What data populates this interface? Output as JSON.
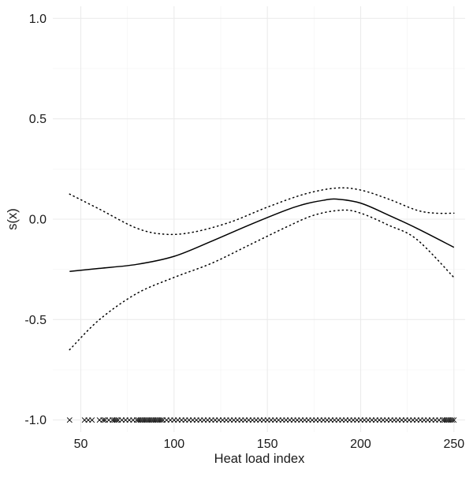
{
  "chart_data": {
    "type": "line",
    "xlabel": "Heat load index",
    "ylabel": "s(x)",
    "xlim": [
      35,
      256
    ],
    "ylim": [
      -1.06,
      1.06
    ],
    "x_ticks": [
      {
        "value": 50,
        "label": "50"
      },
      {
        "value": 100,
        "label": "100"
      },
      {
        "value": 150,
        "label": "150"
      },
      {
        "value": 200,
        "label": "200"
      },
      {
        "value": 250,
        "label": "250"
      }
    ],
    "y_ticks": [
      {
        "value": 1.0,
        "label": "1.0"
      },
      {
        "value": 0.5,
        "label": "0.5"
      },
      {
        "value": 0.0,
        "label": "0.0"
      },
      {
        "value": -0.5,
        "label": "-0.5"
      },
      {
        "value": -1.0,
        "label": "-1.0"
      }
    ],
    "grid": true,
    "series": [
      {
        "role": "fit",
        "style": "solid",
        "x": [
          44,
          60,
          80,
          100,
          120,
          140,
          160,
          170,
          180,
          187,
          200,
          215,
          230,
          250
        ],
        "y": [
          -0.26,
          -0.245,
          -0.225,
          -0.185,
          -0.11,
          -0.03,
          0.045,
          0.075,
          0.094,
          0.1,
          0.08,
          0.02,
          -0.045,
          -0.14
        ]
      },
      {
        "role": "upper confidence band",
        "style": "dotted",
        "x": [
          44,
          60,
          80,
          95,
          110,
          130,
          150,
          170,
          187,
          200,
          215,
          230,
          240,
          250
        ],
        "y": [
          0.125,
          0.05,
          -0.045,
          -0.075,
          -0.065,
          -0.015,
          0.06,
          0.125,
          0.155,
          0.145,
          0.1,
          0.045,
          0.03,
          0.03
        ]
      },
      {
        "role": "lower confidence band",
        "style": "dotted",
        "x": [
          44,
          60,
          80,
          100,
          120,
          140,
          160,
          175,
          190,
          200,
          215,
          230,
          250
        ],
        "y": [
          -0.65,
          -0.5,
          -0.37,
          -0.29,
          -0.22,
          -0.13,
          -0.04,
          0.02,
          0.045,
          0.03,
          -0.03,
          -0.1,
          -0.29
        ]
      }
    ],
    "rug": {
      "y": -1.0,
      "x": [
        44,
        52,
        54,
        56,
        60,
        62,
        63,
        65,
        67,
        68,
        69,
        70,
        72,
        74,
        76,
        78,
        80,
        81,
        82,
        83,
        84,
        85,
        86,
        87,
        88,
        89,
        90,
        91,
        92,
        93,
        94,
        96,
        98,
        100,
        102,
        104,
        106,
        108,
        110,
        112,
        114,
        116,
        118,
        120,
        122,
        124,
        126,
        128,
        130,
        132,
        134,
        136,
        138,
        140,
        142,
        144,
        146,
        148,
        150,
        152,
        154,
        156,
        158,
        160,
        162,
        164,
        166,
        168,
        170,
        172,
        174,
        176,
        178,
        180,
        182,
        184,
        186,
        188,
        190,
        192,
        194,
        196,
        198,
        200,
        202,
        204,
        206,
        208,
        210,
        212,
        214,
        216,
        218,
        220,
        222,
        224,
        226,
        228,
        230,
        232,
        234,
        236,
        238,
        240,
        242,
        244,
        245,
        246,
        247,
        248,
        249,
        250
      ]
    }
  }
}
